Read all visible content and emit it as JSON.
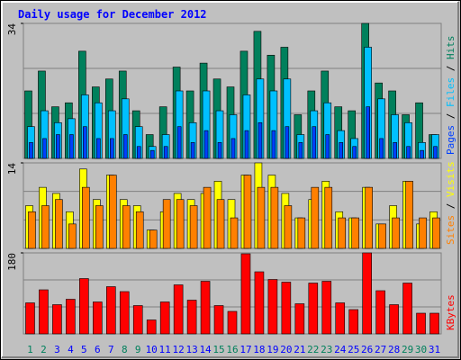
{
  "title": "Daily usage for December 2012",
  "chart_data": [
    {
      "type": "bar",
      "ylim": [
        0,
        34
      ],
      "yticks": [
        34
      ],
      "series": [
        {
          "name": "Hits",
          "color": "#00805c",
          "values": [
            17,
            22,
            13,
            14,
            27,
            18,
            20,
            22,
            12,
            6,
            13,
            23,
            17,
            24,
            20,
            18,
            27,
            32,
            26,
            28,
            11,
            17,
            22,
            13,
            12,
            34,
            19,
            17,
            11,
            14,
            6
          ]
        },
        {
          "name": "Files",
          "color": "#00c0ff",
          "values": [
            8,
            12,
            9,
            10,
            16,
            14,
            12,
            15,
            8,
            3,
            6,
            17,
            9,
            17,
            12,
            11,
            16,
            20,
            17,
            20,
            6,
            12,
            14,
            7,
            5,
            28,
            15,
            11,
            9,
            4,
            6
          ]
        },
        {
          "name": "Pages",
          "color": "#0040ff",
          "values": [
            4,
            5,
            6,
            6,
            8,
            5,
            5,
            6,
            3,
            2,
            3,
            8,
            4,
            7,
            4,
            5,
            7,
            9,
            7,
            8,
            4,
            8,
            6,
            4,
            3,
            13,
            5,
            4,
            3,
            2,
            3
          ]
        }
      ]
    },
    {
      "type": "bar",
      "ylim": [
        0,
        14
      ],
      "yticks": [
        14
      ],
      "series": [
        {
          "name": "Visits",
          "color": "#ffff00",
          "values": [
            7,
            10,
            9,
            6,
            13,
            8,
            12,
            8,
            7,
            3,
            6,
            9,
            8,
            9,
            11,
            8,
            12,
            14,
            12,
            9,
            5,
            8,
            11,
            6,
            5,
            10,
            4,
            7,
            11,
            4,
            6
          ]
        },
        {
          "name": "Sites",
          "color": "#ff8000",
          "values": [
            6,
            7,
            8,
            4,
            10,
            7,
            12,
            7,
            6,
            3,
            8,
            8,
            7,
            10,
            8,
            5,
            12,
            10,
            10,
            7,
            5,
            10,
            10,
            5,
            5,
            10,
            4,
            5,
            11,
            5,
            5
          ]
        }
      ]
    },
    {
      "type": "bar",
      "ylim": [
        0,
        180
      ],
      "yticks": [
        180
      ],
      "categories": [
        "1",
        "2",
        "3",
        "4",
        "5",
        "6",
        "7",
        "8",
        "9",
        "10",
        "11",
        "12",
        "13",
        "14",
        "15",
        "16",
        "17",
        "18",
        "19",
        "20",
        "21",
        "22",
        "23",
        "24",
        "25",
        "26",
        "27",
        "28",
        "29",
        "30",
        "31"
      ],
      "label_colors": [
        "#00805c",
        "#00805c",
        "#0000ff",
        "#0000ff",
        "#0000ff",
        "#0000ff",
        "#0000ff",
        "#00805c",
        "#00805c",
        "#0000ff",
        "#0000ff",
        "#0000ff",
        "#0000ff",
        "#0000ff",
        "#00805c",
        "#00805c",
        "#0000ff",
        "#0000ff",
        "#0000ff",
        "#0000ff",
        "#0000ff",
        "#00805c",
        "#00805c",
        "#0000ff",
        "#0000ff",
        "#0000ff",
        "#0000ff",
        "#0000ff",
        "#00805c",
        "#00805c",
        "#0000ff"
      ],
      "series": [
        {
          "name": "KBytes",
          "color": "#ff0000",
          "values": [
            69,
            98,
            65,
            77,
            123,
            71,
            105,
            94,
            63,
            31,
            71,
            109,
            75,
            117,
            63,
            50,
            178,
            138,
            121,
            115,
            67,
            113,
            117,
            69,
            54,
            180,
            96,
            65,
            113,
            46,
            46
          ]
        }
      ]
    }
  ]
}
